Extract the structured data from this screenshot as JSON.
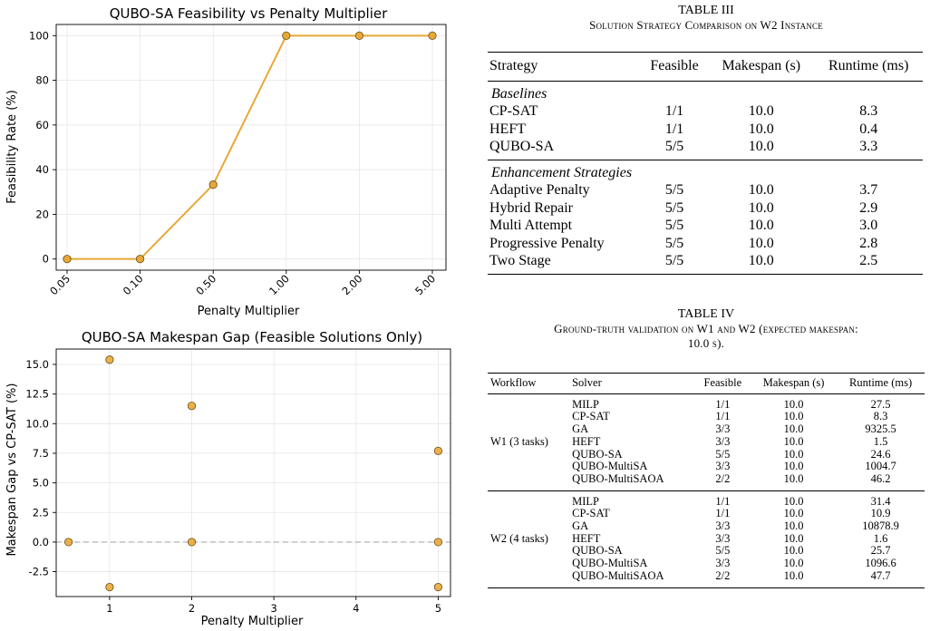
{
  "charts": {
    "top": {
      "title": "QUBO-SA Feasibility vs Penalty Multiplier",
      "xlabel": "Penalty Multiplier",
      "ylabel": "Feasibility Rate (%)"
    },
    "bottom": {
      "title": "QUBO-SA Makespan Gap (Feasible Solutions Only)",
      "xlabel": "Penalty Multiplier",
      "ylabel": "Makespan Gap vs CP-SAT (%)"
    }
  },
  "chart_data": [
    {
      "type": "line",
      "title": "QUBO-SA Feasibility vs Penalty Multiplier",
      "xlabel": "Penalty Multiplier",
      "ylabel": "Feasibility Rate (%)",
      "categories": [
        "0.05",
        "0.10",
        "0.50",
        "1.00",
        "2.00",
        "5.00"
      ],
      "values": [
        0,
        0,
        33.3,
        100,
        100,
        100
      ],
      "yticks": [
        "0",
        "20",
        "40",
        "60",
        "80",
        "100"
      ],
      "ylim": [
        -5,
        105
      ],
      "grid": true,
      "color": "#E8A838"
    },
    {
      "type": "scatter",
      "title": "QUBO-SA Makespan Gap (Feasible Solutions Only)",
      "xlabel": "Penalty Multiplier",
      "ylabel": "Makespan Gap vs CP-SAT (%)",
      "points": [
        {
          "x": 0.5,
          "y": 0.0
        },
        {
          "x": 1,
          "y": 15.4
        },
        {
          "x": 1,
          "y": -3.8
        },
        {
          "x": 2,
          "y": 11.5
        },
        {
          "x": 2,
          "y": 0.0
        },
        {
          "x": 5,
          "y": 7.7
        },
        {
          "x": 5,
          "y": 0.0
        },
        {
          "x": 5,
          "y": -3.8
        }
      ],
      "xticks": [
        "1",
        "2",
        "3",
        "4",
        "5"
      ],
      "yticks": [
        "-2.5",
        "0.0",
        "2.5",
        "5.0",
        "7.5",
        "10.0",
        "12.5",
        "15.0"
      ],
      "xlim": [
        0.35,
        5.15
      ],
      "ylim": [
        -4.6,
        16.3
      ],
      "reference_line": {
        "y": 0,
        "style": "dashed"
      },
      "grid": true,
      "color": "#E8A838"
    }
  ],
  "table3": {
    "number": "TABLE III",
    "caption": "Solution Strategy Comparison on W2 Instance",
    "headers": [
      "Strategy",
      "Feasible",
      "Makespan (s)",
      "Runtime (ms)"
    ],
    "groups": [
      {
        "label": "Baselines",
        "rows": [
          [
            "CP-SAT",
            "1/1",
            "10.0",
            "8.3"
          ],
          [
            "HEFT",
            "1/1",
            "10.0",
            "0.4"
          ],
          [
            "QUBO-SA",
            "5/5",
            "10.0",
            "3.3"
          ]
        ]
      },
      {
        "label": "Enhancement Strategies",
        "rows": [
          [
            "Adaptive Penalty",
            "5/5",
            "10.0",
            "3.7"
          ],
          [
            "Hybrid Repair",
            "5/5",
            "10.0",
            "2.9"
          ],
          [
            "Multi Attempt",
            "5/5",
            "10.0",
            "3.0"
          ],
          [
            "Progressive Penalty",
            "5/5",
            "10.0",
            "2.8"
          ],
          [
            "Two Stage",
            "5/5",
            "10.0",
            "2.5"
          ]
        ]
      }
    ]
  },
  "table4": {
    "number": "TABLE IV",
    "caption_line1": "Ground-truth validation on W1 and W2 (expected makespan:",
    "caption_line2": "10.0 s).",
    "headers": [
      "Workflow",
      "Solver",
      "Feasible",
      "Makespan (s)",
      "Runtime (ms)"
    ],
    "groups": [
      {
        "workflow": "W1 (3 tasks)",
        "rows": [
          [
            "MILP",
            "1/1",
            "10.0",
            "27.5"
          ],
          [
            "CP-SAT",
            "1/1",
            "10.0",
            "8.3"
          ],
          [
            "GA",
            "3/3",
            "10.0",
            "9325.5"
          ],
          [
            "HEFT",
            "3/3",
            "10.0",
            "1.5"
          ],
          [
            "QUBO-SA",
            "5/5",
            "10.0",
            "24.6"
          ],
          [
            "QUBO-MultiSA",
            "3/3",
            "10.0",
            "1004.7"
          ],
          [
            "QUBO-MultiSAOA",
            "2/2",
            "10.0",
            "46.2"
          ]
        ]
      },
      {
        "workflow": "W2 (4 tasks)",
        "rows": [
          [
            "MILP",
            "1/1",
            "10.0",
            "31.4"
          ],
          [
            "CP-SAT",
            "1/1",
            "10.0",
            "10.9"
          ],
          [
            "GA",
            "3/3",
            "10.0",
            "10878.9"
          ],
          [
            "HEFT",
            "3/3",
            "10.0",
            "1.6"
          ],
          [
            "QUBO-SA",
            "5/5",
            "10.0",
            "25.7"
          ],
          [
            "QUBO-MultiSA",
            "3/3",
            "10.0",
            "1096.6"
          ],
          [
            "QUBO-MultiSAOA",
            "2/2",
            "10.0",
            "47.7"
          ]
        ]
      }
    ]
  }
}
